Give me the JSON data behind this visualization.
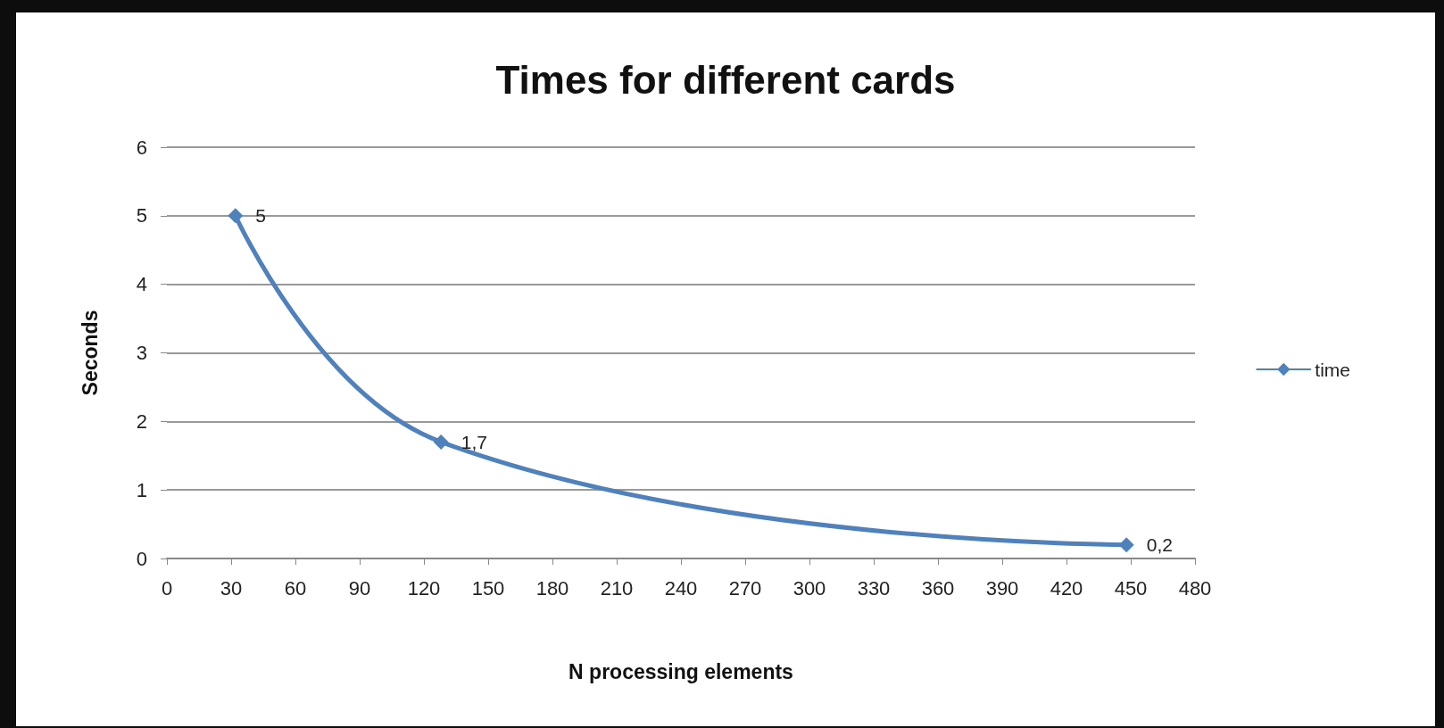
{
  "chart_data": {
    "type": "line",
    "title": "Times for different cards",
    "xlabel": "N processing elements",
    "ylabel": "Seconds",
    "x": [
      32,
      128,
      448
    ],
    "series": [
      {
        "name": "time",
        "color": "#4f81bd",
        "values": [
          5,
          1.7,
          0.2
        ],
        "value_labels": [
          "5",
          "1,7",
          "0,2"
        ]
      }
    ],
    "xlim": [
      0,
      480
    ],
    "xticks": [
      0,
      30,
      60,
      90,
      120,
      150,
      180,
      210,
      240,
      270,
      300,
      330,
      360,
      390,
      420,
      450,
      480
    ],
    "ylim": [
      0,
      6
    ],
    "yticks": [
      0,
      1,
      2,
      3,
      4,
      5,
      6
    ],
    "grid": "y",
    "legend": "right",
    "marker": "diamond",
    "line_style": "solid"
  }
}
